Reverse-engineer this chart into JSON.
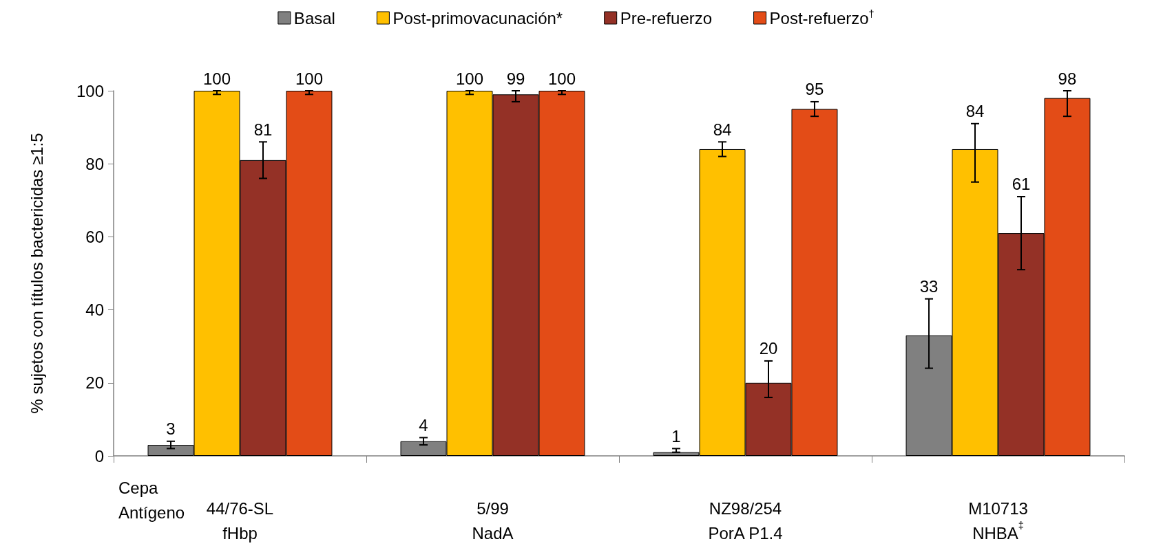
{
  "chart_data": {
    "type": "bar",
    "categories": [
      "44/76-SL\nfHbp",
      "5/99\nNadA",
      "NZ98/254\nPorA P1.4",
      "M10713\nNHBA$^{‡}$"
    ],
    "ylabel": "% sujetos con títulos bactericidas ≥1:5",
    "ylim": [
      0,
      100
    ],
    "yticks": [
      0,
      20,
      40,
      60,
      80,
      100
    ],
    "grid": false,
    "legend": "top",
    "data_labels": true,
    "annotations": [
      "Cepa",
      "Antígeno"
    ],
    "series": [
      {
        "name": "Basal",
        "color": "#808080",
        "values": [
          3,
          4,
          1,
          33
        ],
        "errors": [
          [
            2,
            4
          ],
          [
            3,
            5
          ],
          [
            1,
            2
          ],
          [
            24,
            43
          ]
        ]
      },
      {
        "name": "Post-primovacunación*",
        "color": "#ffc000",
        "values": [
          100,
          100,
          84,
          84
        ],
        "errors": [
          [
            99,
            100
          ],
          [
            99,
            100
          ],
          [
            82,
            86
          ],
          [
            75,
            91
          ]
        ]
      },
      {
        "name": "Pre-refuerzo",
        "color": "#943126",
        "values": [
          81,
          99,
          20,
          61
        ],
        "errors": [
          [
            76,
            86
          ],
          [
            97,
            100
          ],
          [
            16,
            26
          ],
          [
            51,
            71
          ]
        ]
      },
      {
        "name": "Post-refuerzo$^{†}$",
        "color": "#e34c17",
        "values": [
          100,
          100,
          95,
          98
        ],
        "errors": [
          [
            99,
            100
          ],
          [
            99,
            100
          ],
          [
            93,
            97
          ],
          [
            93,
            100
          ]
        ]
      }
    ]
  }
}
